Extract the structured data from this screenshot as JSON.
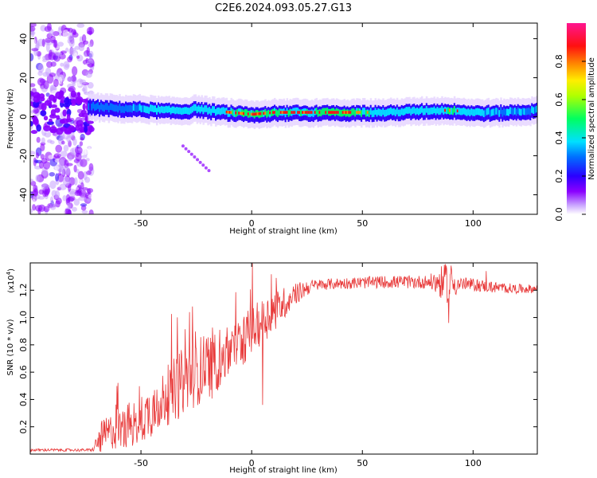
{
  "title": "C2E6.2024.093.05.27.G13",
  "chart_data": [
    {
      "type": "heatmap",
      "xlabel": "Height of straight line (km)",
      "ylabel": "Frequency (Hz)",
      "xlim": [
        -100,
        129
      ],
      "ylim": [
        -50,
        48
      ],
      "xticks": [
        -50,
        0,
        50,
        100
      ],
      "yticks": [
        -40,
        -20,
        0,
        20,
        40
      ],
      "colorbar": {
        "label": "Normalized spectral amplitude",
        "range": [
          0,
          1
        ],
        "ticks": [
          "0.0",
          "0.2",
          "0.4",
          "0.6",
          "0.8"
        ],
        "colors": [
          "#ffffff",
          "#8a00ff",
          "#0000ff",
          "#00ffff",
          "#00ff00",
          "#ffff00",
          "#ff7f00",
          "#ff0000",
          "#ff0090"
        ]
      },
      "ridge": {
        "x": [
          -73,
          -60,
          -50,
          -40,
          -30,
          -25,
          -20,
          -10,
          0,
          10,
          20,
          40,
          60,
          80,
          90,
          100,
          110,
          129
        ],
        "freq": [
          5,
          4,
          4,
          3,
          3,
          4,
          3,
          2,
          1,
          2,
          2,
          2,
          2,
          3,
          3,
          2,
          2,
          3
        ],
        "amplitude": [
          0.4,
          0.45,
          0.5,
          0.55,
          0.6,
          0.6,
          0.6,
          0.65,
          0.7,
          0.7,
          0.65,
          0.75,
          0.6,
          0.55,
          0.7,
          0.55,
          0.5,
          0.5
        ]
      }
    },
    {
      "type": "line",
      "xlabel": "Height of straight line (km)",
      "ylabel": "SNR (10 * v/v)",
      "scale_label": "(x10",
      "scale_exponent": "4",
      "scale_close": ")",
      "xlim": [
        -100,
        129
      ],
      "ylim": [
        0,
        1.4
      ],
      "xticks": [
        -50,
        0,
        50,
        100
      ],
      "yticks": [
        "0.2",
        "0.4",
        "0.6",
        "0.8",
        "1.0",
        "1.2"
      ],
      "color": "#e83a3a",
      "envelope": {
        "x": [
          -100,
          -72,
          -68,
          -60,
          -50,
          -40,
          -30,
          -20,
          -10,
          0,
          10,
          20,
          25,
          30,
          40,
          60,
          80,
          90,
          100,
          110,
          120,
          129
        ],
        "y": [
          0.03,
          0.03,
          0.12,
          0.2,
          0.25,
          0.4,
          0.55,
          0.65,
          0.75,
          0.9,
          1.05,
          1.17,
          1.22,
          1.24,
          1.25,
          1.26,
          1.26,
          1.25,
          1.24,
          1.22,
          1.21,
          1.21
        ]
      },
      "noise_amplitude": {
        "x": [
          -100,
          -72,
          -68,
          -50,
          -30,
          -20,
          -10,
          0,
          10,
          20,
          30,
          80,
          88,
          95,
          129
        ],
        "y": [
          0.01,
          0.01,
          0.12,
          0.18,
          0.25,
          0.25,
          0.2,
          0.18,
          0.15,
          0.08,
          0.04,
          0.05,
          0.15,
          0.05,
          0.03
        ]
      },
      "notable_points": [
        {
          "x": -28,
          "y": 1.04
        },
        {
          "x": 11,
          "y": 1.29
        },
        {
          "x": 90,
          "y": 1.38
        },
        {
          "x": 89,
          "y": 0.96
        },
        {
          "x": 106,
          "y": 1.34
        },
        {
          "x": 5,
          "y": 0.36
        }
      ]
    }
  ]
}
